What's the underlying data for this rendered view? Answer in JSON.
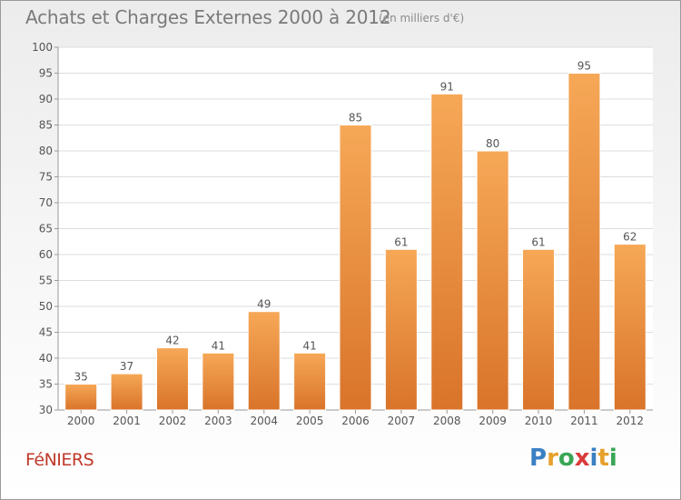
{
  "title": "Achats et Charges Externes 2000 à 2012",
  "subtitle": "(en milliers d'€)",
  "town": "FéNIERS",
  "logo": {
    "text": "Proxiti",
    "letters": [
      {
        "ch": "P",
        "color": "#3a7fc4"
      },
      {
        "ch": "r",
        "color": "#e6a12b"
      },
      {
        "ch": "o",
        "color": "#3aa655"
      },
      {
        "ch": "x",
        "color": "#d93b3b"
      },
      {
        "ch": "i",
        "color": "#3a7fc4"
      },
      {
        "ch": "t",
        "color": "#e6a12b"
      },
      {
        "ch": "i",
        "color": "#3aa655"
      }
    ]
  },
  "colors": {
    "bar_light": "#f6a857",
    "bar_dark": "#d9742a",
    "grid": "#dddddd",
    "axis": "#999999",
    "text": "#555555"
  },
  "chart_data": {
    "type": "bar",
    "categories": [
      "2000",
      "2001",
      "2002",
      "2003",
      "2004",
      "2005",
      "2006",
      "2007",
      "2008",
      "2009",
      "2010",
      "2011",
      "2012"
    ],
    "values": [
      35,
      37,
      42,
      41,
      49,
      41,
      85,
      61,
      91,
      80,
      61,
      95,
      62
    ],
    "ylim": [
      30,
      100
    ],
    "yticks": [
      30,
      35,
      40,
      45,
      50,
      55,
      60,
      65,
      70,
      75,
      80,
      85,
      90,
      95,
      100
    ],
    "grid": true
  }
}
